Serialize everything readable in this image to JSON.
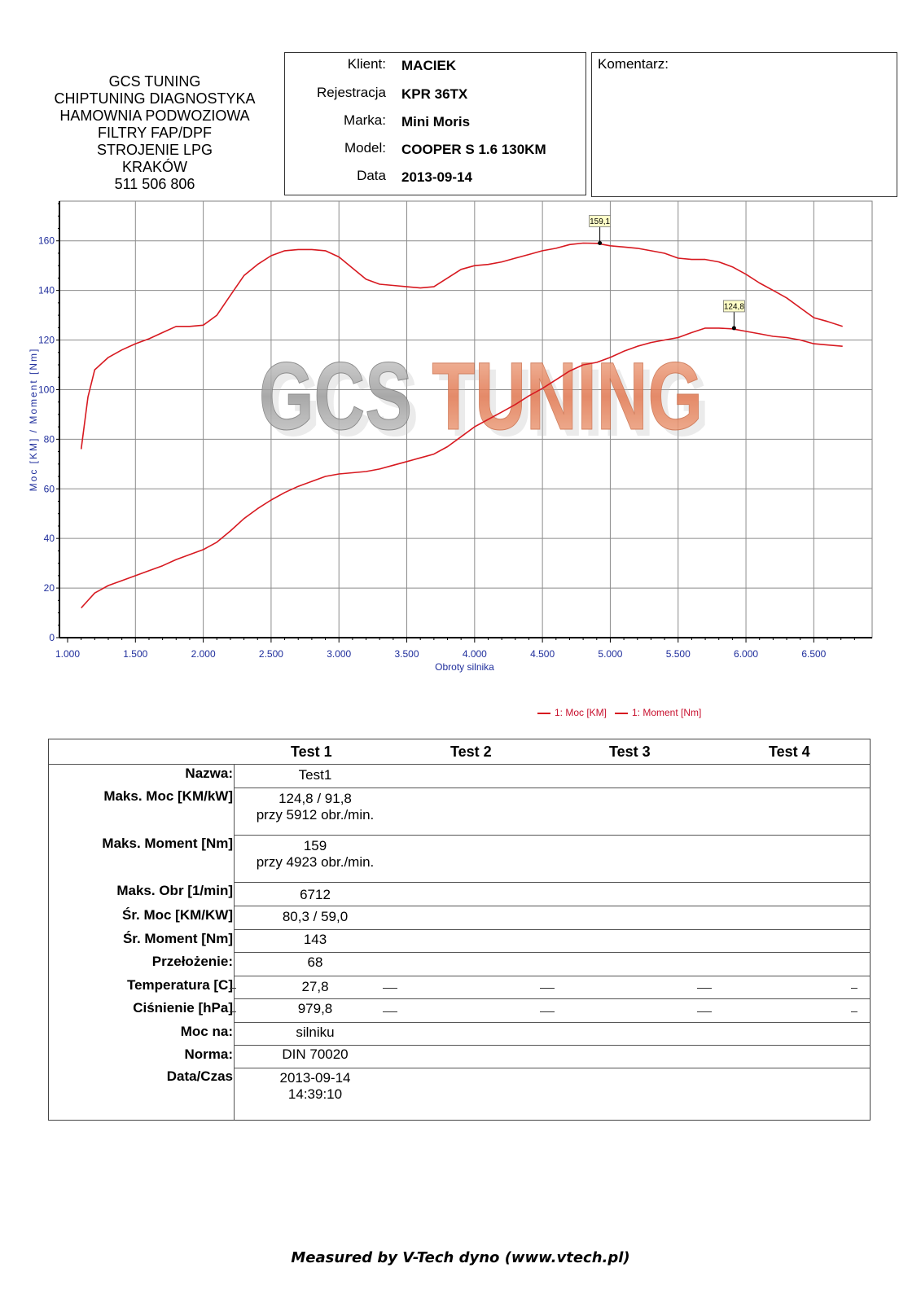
{
  "company": {
    "lines": [
      "GCS TUNING",
      "CHIPTUNING DIAGNOSTYKA",
      "HAMOWNIA PODWOZIOWA",
      "FILTRY FAP/DPF",
      "STROJENIE LPG",
      "KRAKÓW",
      "511 506 806"
    ]
  },
  "info": [
    {
      "label": "Klient:",
      "value": "MACIEK"
    },
    {
      "label": "Rejestracja",
      "value": "KPR 36TX"
    },
    {
      "label": "Marka:",
      "value": "Mini Moris"
    },
    {
      "label": "Model:",
      "value": "COOPER S 1.6 130KM"
    },
    {
      "label": "Data",
      "value": "2013-09-14"
    }
  ],
  "comment_label": "Komentarz:",
  "chart_data": {
    "type": "line",
    "watermark": "GCS TUNING",
    "xlabel": "Obroty silnika",
    "ylabel": "Moc [KM] / Moment [Nm]",
    "xlim": [
      1000,
      6900
    ],
    "ylim": [
      0,
      176
    ],
    "grid": true,
    "x_ticks": [
      1000,
      1500,
      2000,
      2500,
      3000,
      3500,
      4000,
      4500,
      5000,
      5500,
      6000,
      6500
    ],
    "x_tick_labels": [
      "1.000",
      "1.500",
      "2.000",
      "2.500",
      "3.000",
      "3.500",
      "4.000",
      "4.500",
      "5.000",
      "5.500",
      "6.000",
      "6.500"
    ],
    "y_ticks": [
      0,
      20,
      40,
      60,
      80,
      100,
      120,
      140,
      160
    ],
    "y_tick_labels": [
      "0",
      "20",
      "40",
      "60",
      "80",
      "100",
      "120",
      "140",
      "160"
    ],
    "series": [
      {
        "name": "1: Moc [KM]",
        "color": "#d71920",
        "x": [
          1100,
          1200,
          1300,
          1400,
          1500,
          1600,
          1700,
          1800,
          1900,
          2000,
          2100,
          2200,
          2300,
          2400,
          2500,
          2600,
          2700,
          2800,
          2900,
          3000,
          3100,
          3200,
          3300,
          3400,
          3500,
          3600,
          3700,
          3800,
          3900,
          4000,
          4100,
          4200,
          4300,
          4400,
          4500,
          4600,
          4700,
          4800,
          4900,
          5000,
          5100,
          5200,
          5300,
          5400,
          5500,
          5600,
          5700,
          5800,
          5900,
          6000,
          6100,
          6200,
          6300,
          6400,
          6500,
          6600,
          6712
        ],
        "values": [
          12,
          18,
          21,
          23,
          25,
          27,
          29,
          31.5,
          33.5,
          35.5,
          38.5,
          43,
          48,
          52,
          55.5,
          58.5,
          61,
          63,
          65,
          66,
          66.5,
          67,
          68,
          69.5,
          71,
          72.5,
          74,
          77,
          81,
          85,
          88,
          91,
          94,
          97.5,
          100.5,
          104,
          107.5,
          110,
          111,
          113,
          115.5,
          117.5,
          119,
          120,
          121,
          123,
          124.8,
          124.8,
          124.5,
          123.5,
          122.5,
          121.5,
          121,
          120,
          118.5,
          118,
          117.5
        ],
        "annotation": {
          "x": 5912,
          "y": 124.8,
          "label": "124,8"
        }
      },
      {
        "name": "1: Moment [Nm]",
        "color": "#d71920",
        "x": [
          1100,
          1150,
          1200,
          1300,
          1400,
          1500,
          1600,
          1700,
          1800,
          1900,
          2000,
          2100,
          2200,
          2300,
          2400,
          2500,
          2600,
          2700,
          2800,
          2900,
          3000,
          3100,
          3200,
          3300,
          3400,
          3500,
          3600,
          3700,
          3800,
          3900,
          4000,
          4100,
          4200,
          4300,
          4400,
          4500,
          4600,
          4700,
          4800,
          4900,
          5000,
          5100,
          5200,
          5300,
          5400,
          5500,
          5600,
          5700,
          5800,
          5900,
          6000,
          6100,
          6200,
          6300,
          6400,
          6500,
          6600,
          6712
        ],
        "values": [
          76,
          97,
          108,
          113,
          116,
          118.5,
          120.5,
          123,
          125.5,
          125.5,
          126,
          130,
          138,
          146,
          150.5,
          154,
          156,
          156.5,
          156.5,
          156,
          153.5,
          149,
          144.5,
          142.5,
          142,
          141.5,
          141,
          141.5,
          145,
          148.5,
          150,
          150.5,
          151.5,
          153,
          154.5,
          156,
          157,
          158.5,
          159.1,
          159,
          158,
          157.5,
          157,
          156,
          155,
          153,
          152.5,
          152.5,
          151.5,
          149.5,
          146.5,
          143,
          140,
          137,
          133,
          129,
          127.5,
          125.5
        ],
        "annotation": {
          "x": 4923,
          "y": 159.1,
          "label": "159,1"
        }
      }
    ]
  },
  "legend": {
    "moc": "1: Moc [KM]",
    "moment": "1: Moment [Nm]"
  },
  "results": {
    "headers": [
      "Test 1",
      "Test 2",
      "Test 3",
      "Test 4"
    ],
    "rows": [
      {
        "label": "Nazwa:",
        "value": "Test1",
        "value2": ""
      },
      {
        "label": "Maks. Moc [KM/kW]",
        "value": "124,8 / 91,8",
        "value2": "przy 5912 obr./min."
      },
      {
        "label": "Maks. Moment [Nm]",
        "value": "159",
        "value2": "przy 4923 obr./min."
      },
      {
        "label": "Maks. Obr [1/min]",
        "value": "6712",
        "value2": ""
      },
      {
        "label": "Śr. Moc [KM/KW]",
        "value": "80,3 / 59,0",
        "value2": ""
      },
      {
        "label": "Śr. Moment [Nm]",
        "value": "143",
        "value2": ""
      },
      {
        "label": "Przełożenie:",
        "value": "68",
        "value2": ""
      },
      {
        "label": "Temperatura [C]",
        "value": "27,8",
        "value2": ""
      },
      {
        "label": "Ciśnienie [hPa]",
        "value": "979,8",
        "value2": ""
      },
      {
        "label": "Moc na:",
        "value": "silniku",
        "value2": ""
      },
      {
        "label": "Norma:",
        "value": "DIN 70020",
        "value2": ""
      },
      {
        "label": "Data/Czas",
        "value": "2013-09-14",
        "value2": "14:39:10"
      }
    ]
  },
  "footer": "Measured by V-Tech dyno (www.vtech.pl)"
}
